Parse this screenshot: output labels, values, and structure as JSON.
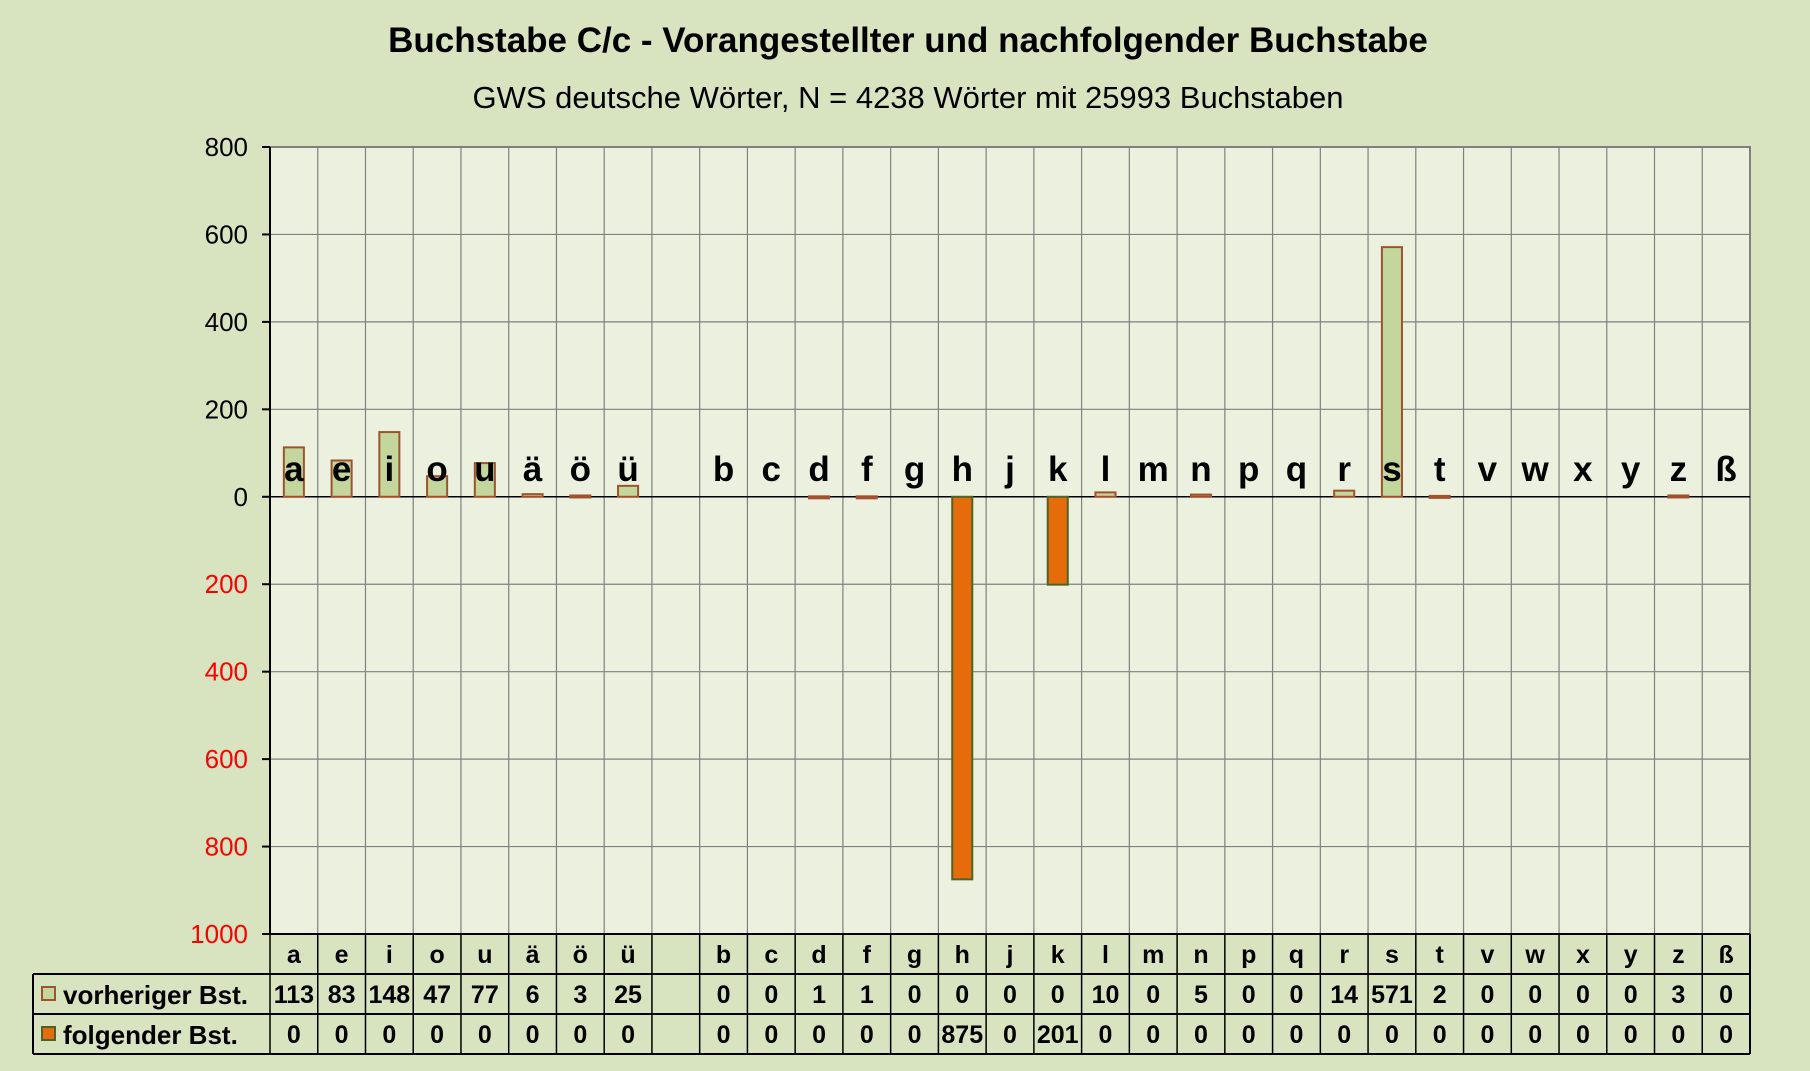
{
  "chart_data": {
    "type": "bar",
    "title": "Buchstabe C/c - Vorangestellter und nachfolgender Buchstabe",
    "subtitle": "GWS deutsche Wörter, N = 4238 Wörter mit 25993 Buchstaben",
    "categories": [
      "a",
      "e",
      "i",
      "o",
      "u",
      "ä",
      "ö",
      "ü",
      "",
      "b",
      "c",
      "d",
      "f",
      "g",
      "h",
      "j",
      "k",
      "l",
      "m",
      "n",
      "p",
      "q",
      "r",
      "s",
      "t",
      "v",
      "w",
      "x",
      "y",
      "z",
      "ß"
    ],
    "series": [
      {
        "name": "vorheriger Bst.",
        "direction": "up",
        "color": "#c3d69b",
        "border": "#a0522d",
        "values": [
          113,
          83,
          148,
          47,
          77,
          6,
          3,
          25,
          null,
          0,
          0,
          1,
          1,
          0,
          0,
          0,
          0,
          10,
          0,
          5,
          0,
          0,
          14,
          571,
          2,
          0,
          0,
          0,
          0,
          3,
          0
        ]
      },
      {
        "name": "folgender Bst.",
        "direction": "down",
        "color": "#e46c0a",
        "border": "#4f6228",
        "values": [
          0,
          0,
          0,
          0,
          0,
          0,
          0,
          0,
          null,
          0,
          0,
          0,
          0,
          0,
          875,
          0,
          201,
          0,
          0,
          0,
          0,
          0,
          0,
          0,
          0,
          0,
          0,
          0,
          0,
          0,
          0
        ]
      }
    ],
    "yticks_up": [
      "800",
      "600",
      "400",
      "200",
      "0"
    ],
    "yticks_down": [
      "200",
      "400",
      "600",
      "800",
      "1000"
    ],
    "ylim": [
      -1000,
      800
    ],
    "grid": true,
    "legend": "data-table-left",
    "colors": {
      "up_tick": "#000000",
      "down_tick": "#ff0000",
      "plot_bg": "#ebf1de",
      "page_bg": "#d8e4bf",
      "grid": "#808080"
    }
  }
}
